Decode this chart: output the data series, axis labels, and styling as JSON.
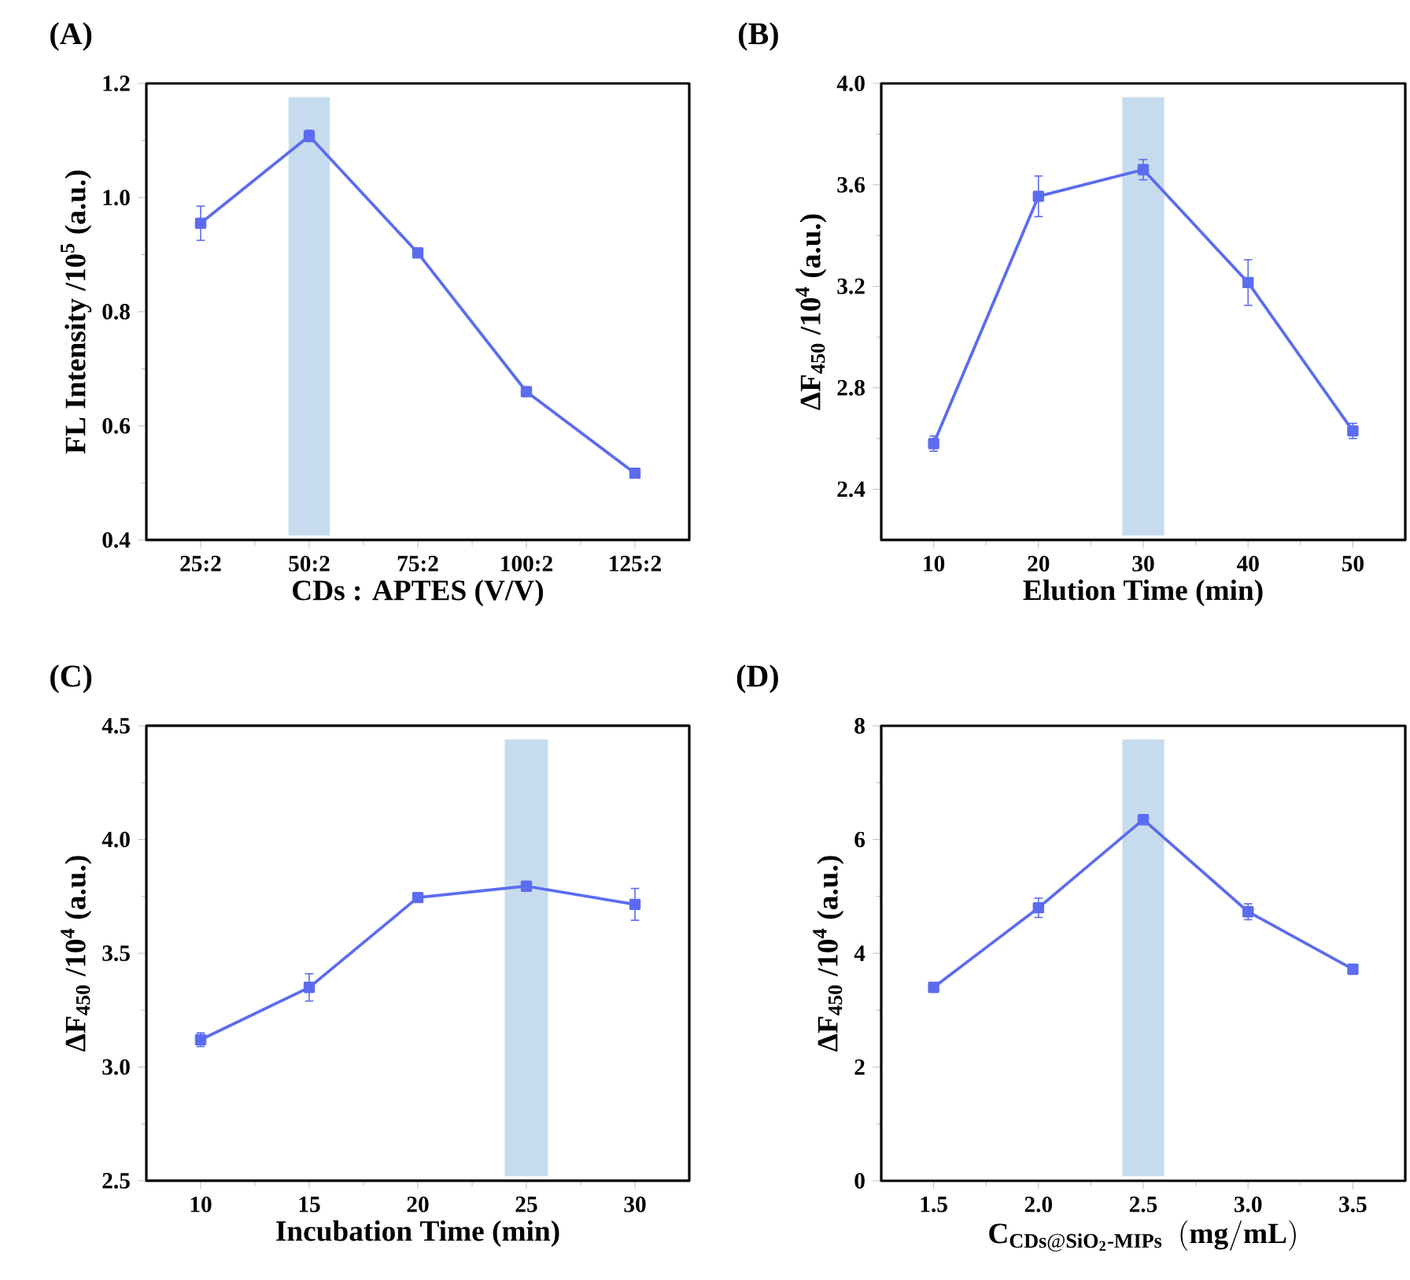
{
  "chart_data": [
    {
      "type": "line",
      "title": "(A)",
      "xlabel": "CDs : APTES  (V/V)",
      "ylabel": "FL Intensity /10$^{5}$ (a.u.)",
      "categories": [
        "25:2",
        "50:2",
        "75:2",
        "100:2",
        "125:2"
      ],
      "values": [
        0.955,
        1.108,
        0.903,
        0.66,
        0.517
      ],
      "errors": [
        0.03,
        0.01,
        0.005,
        0.005,
        0.005
      ],
      "color": "#5b6cf0",
      "marker": "square",
      "ylim": [
        0.4,
        1.2
      ],
      "yticks": [
        0.4,
        0.6,
        0.8,
        {
          "value": 1.0,
          "label": "1.0"
        },
        1.2
      ],
      "bands": [
        {
          "axis": "x",
          "from": "50:2",
          "to": "50:2",
          "color": "#c6dcee"
        }
      ]
    },
    {
      "type": "line",
      "title": "(B)",
      "xlabel": "Elution Time  (min)",
      "ylabel": "ΔF$_{450}$ /10$^{4}$ (a.u.)",
      "x": [
        10,
        20,
        30,
        40,
        50
      ],
      "values": [
        2.58,
        3.555,
        3.66,
        3.215,
        2.63
      ],
      "errors": [
        0.03,
        0.08,
        0.04,
        0.09,
        0.03
      ],
      "color": "#5b6cf0",
      "marker": "square",
      "xlim": [
        5,
        55
      ],
      "ylim": [
        2.2,
        4.0
      ],
      "xticks": [
        10,
        20,
        30,
        40,
        50
      ],
      "yticks": [
        2.4,
        2.8,
        3.2,
        3.6,
        {
          "value": 4.0,
          "label": "4.0"
        }
      ],
      "bands": [
        {
          "axis": "x",
          "from": 28,
          "to": 32,
          "color": "#c6dcee"
        }
      ]
    },
    {
      "type": "line",
      "title": "(C)",
      "xlabel": "Incubation Time  (min)",
      "ylabel": "ΔF$_{450}$ /10$^{4}$ (a.u.)",
      "x": [
        10,
        15,
        20,
        25,
        30
      ],
      "values": [
        3.12,
        3.35,
        3.745,
        3.795,
        3.715
      ],
      "errors": [
        0.03,
        0.06,
        0.01,
        0.015,
        0.07
      ],
      "color": "#5b6cf0",
      "marker": "square",
      "xlim": [
        7.5,
        32.5
      ],
      "ylim": [
        2.5,
        4.5
      ],
      "xticks": [
        10,
        15,
        20,
        25,
        30
      ],
      "yticks": [
        2.5,
        {
          "value": 3.0,
          "label": "3.0"
        },
        3.5,
        {
          "value": 4.0,
          "label": "4.0"
        },
        4.5
      ],
      "bands": [
        {
          "axis": "x",
          "from": 24,
          "to": 26,
          "color": "#c6dcee"
        }
      ]
    },
    {
      "type": "line",
      "title": "(D)",
      "xlabel": "\\mathbf{C_{CDs@SiO_{2}\\text{-}MIPs}\\ \\ (mg/mL)}",
      "ylabel": "ΔF$_{450}$ /10$^{4}$ (a.u.)",
      "x": [
        1.5,
        2.0,
        2.5,
        3.0,
        3.5
      ],
      "values": [
        3.4,
        4.8,
        6.35,
        4.73,
        3.72
      ],
      "errors": [
        0.05,
        0.17,
        0.05,
        0.14,
        0.03
      ],
      "color": "#5b6cf0",
      "marker": "square",
      "xlim": [
        1.25,
        3.75
      ],
      "ylim": [
        0,
        8
      ],
      "xticks": [
        1.5,
        {
          "value": 2.0,
          "label": "2.0"
        },
        2.5,
        {
          "value": 3.0,
          "label": "3.0"
        },
        3.5
      ],
      "yticks": [
        0,
        2,
        4,
        6,
        8
      ],
      "bands": [
        {
          "axis": "x",
          "from": 2.4,
          "to": 2.6,
          "color": "#c6dcee"
        }
      ]
    }
  ]
}
